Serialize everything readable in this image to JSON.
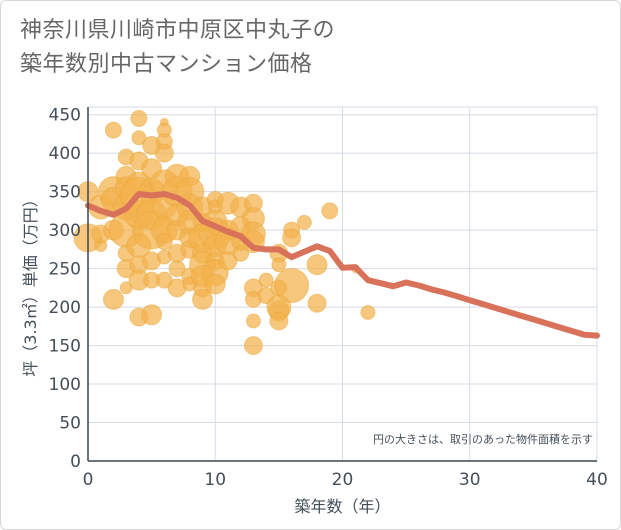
{
  "title": {
    "line1": "神奈川県川崎市中原区中丸子の",
    "line2": "築年数別中古マンション価格"
  },
  "chart_data": {
    "type": "scatter",
    "xlabel": "築年数（年）",
    "ylabel": "坪（3.3㎡）単価（万円）",
    "xlim": [
      0,
      40
    ],
    "ylim": [
      0,
      460
    ],
    "xticks": [
      0,
      10,
      20,
      30,
      40
    ],
    "yticks": [
      0,
      50,
      100,
      150,
      200,
      250,
      300,
      350,
      400,
      450
    ],
    "note": "円の大きさは、取引のあった物件面積を示す",
    "colors": {
      "bubble": "#f2b24b",
      "line": "#d9725a",
      "grid": "#d5dbe3"
    },
    "scatter_points": [
      {
        "x": 0,
        "y": 350,
        "s": 10
      },
      {
        "x": 0,
        "y": 290,
        "s": 14
      },
      {
        "x": 1,
        "y": 330,
        "s": 12
      },
      {
        "x": 1,
        "y": 280,
        "s": 6
      },
      {
        "x": 1,
        "y": 295,
        "s": 9
      },
      {
        "x": 2,
        "y": 430,
        "s": 8
      },
      {
        "x": 2,
        "y": 350,
        "s": 15
      },
      {
        "x": 2,
        "y": 340,
        "s": 12
      },
      {
        "x": 2,
        "y": 300,
        "s": 10
      },
      {
        "x": 2,
        "y": 210,
        "s": 10
      },
      {
        "x": 3,
        "y": 395,
        "s": 8
      },
      {
        "x": 3,
        "y": 370,
        "s": 10
      },
      {
        "x": 3,
        "y": 355,
        "s": 11
      },
      {
        "x": 3,
        "y": 330,
        "s": 13
      },
      {
        "x": 3,
        "y": 300,
        "s": 17
      },
      {
        "x": 3,
        "y": 270,
        "s": 8
      },
      {
        "x": 3,
        "y": 250,
        "s": 9
      },
      {
        "x": 3,
        "y": 225,
        "s": 6
      },
      {
        "x": 4,
        "y": 445,
        "s": 8
      },
      {
        "x": 4,
        "y": 420,
        "s": 7
      },
      {
        "x": 4,
        "y": 390,
        "s": 9
      },
      {
        "x": 4,
        "y": 360,
        "s": 12
      },
      {
        "x": 4,
        "y": 345,
        "s": 18
      },
      {
        "x": 4,
        "y": 320,
        "s": 14
      },
      {
        "x": 4,
        "y": 280,
        "s": 12
      },
      {
        "x": 4,
        "y": 255,
        "s": 9
      },
      {
        "x": 4,
        "y": 235,
        "s": 10
      },
      {
        "x": 4,
        "y": 187,
        "s": 9
      },
      {
        "x": 5,
        "y": 410,
        "s": 9
      },
      {
        "x": 5,
        "y": 380,
        "s": 10
      },
      {
        "x": 5,
        "y": 350,
        "s": 13
      },
      {
        "x": 5,
        "y": 320,
        "s": 15
      },
      {
        "x": 5,
        "y": 300,
        "s": 19
      },
      {
        "x": 5,
        "y": 260,
        "s": 9
      },
      {
        "x": 5,
        "y": 235,
        "s": 8
      },
      {
        "x": 5,
        "y": 190,
        "s": 10
      },
      {
        "x": 6,
        "y": 440,
        "s": 4
      },
      {
        "x": 6,
        "y": 430,
        "s": 7
      },
      {
        "x": 6,
        "y": 415,
        "s": 8
      },
      {
        "x": 6,
        "y": 400,
        "s": 9
      },
      {
        "x": 6,
        "y": 360,
        "s": 14
      },
      {
        "x": 6,
        "y": 330,
        "s": 12
      },
      {
        "x": 6,
        "y": 300,
        "s": 13
      },
      {
        "x": 6,
        "y": 285,
        "s": 8
      },
      {
        "x": 6,
        "y": 265,
        "s": 7
      },
      {
        "x": 6,
        "y": 235,
        "s": 8
      },
      {
        "x": 7,
        "y": 370,
        "s": 12
      },
      {
        "x": 7,
        "y": 350,
        "s": 15
      },
      {
        "x": 7,
        "y": 320,
        "s": 11
      },
      {
        "x": 7,
        "y": 300,
        "s": 10
      },
      {
        "x": 7,
        "y": 270,
        "s": 9
      },
      {
        "x": 7,
        "y": 250,
        "s": 8
      },
      {
        "x": 7,
        "y": 225,
        "s": 9
      },
      {
        "x": 8,
        "y": 370,
        "s": 10
      },
      {
        "x": 8,
        "y": 350,
        "s": 14
      },
      {
        "x": 8,
        "y": 330,
        "s": 13
      },
      {
        "x": 8,
        "y": 310,
        "s": 12
      },
      {
        "x": 8,
        "y": 290,
        "s": 10
      },
      {
        "x": 8,
        "y": 275,
        "s": 9
      },
      {
        "x": 8,
        "y": 240,
        "s": 8
      },
      {
        "x": 8,
        "y": 230,
        "s": 7
      },
      {
        "x": 9,
        "y": 330,
        "s": 10
      },
      {
        "x": 9,
        "y": 310,
        "s": 9
      },
      {
        "x": 9,
        "y": 290,
        "s": 14
      },
      {
        "x": 9,
        "y": 270,
        "s": 10
      },
      {
        "x": 9,
        "y": 255,
        "s": 13
      },
      {
        "x": 9,
        "y": 240,
        "s": 11
      },
      {
        "x": 9,
        "y": 225,
        "s": 9
      },
      {
        "x": 9,
        "y": 210,
        "s": 10
      },
      {
        "x": 10,
        "y": 340,
        "s": 8
      },
      {
        "x": 10,
        "y": 330,
        "s": 7
      },
      {
        "x": 10,
        "y": 310,
        "s": 12
      },
      {
        "x": 10,
        "y": 295,
        "s": 16
      },
      {
        "x": 10,
        "y": 280,
        "s": 11
      },
      {
        "x": 10,
        "y": 260,
        "s": 9
      },
      {
        "x": 10,
        "y": 245,
        "s": 13
      },
      {
        "x": 10,
        "y": 230,
        "s": 10
      },
      {
        "x": 11,
        "y": 335,
        "s": 11
      },
      {
        "x": 11,
        "y": 300,
        "s": 10
      },
      {
        "x": 11,
        "y": 285,
        "s": 13
      },
      {
        "x": 11,
        "y": 260,
        "s": 9
      },
      {
        "x": 12,
        "y": 330,
        "s": 10
      },
      {
        "x": 12,
        "y": 305,
        "s": 10
      },
      {
        "x": 12,
        "y": 285,
        "s": 9
      },
      {
        "x": 12,
        "y": 270,
        "s": 8
      },
      {
        "x": 13,
        "y": 335,
        "s": 9
      },
      {
        "x": 13,
        "y": 315,
        "s": 11
      },
      {
        "x": 13,
        "y": 295,
        "s": 12
      },
      {
        "x": 13,
        "y": 285,
        "s": 11
      },
      {
        "x": 13,
        "y": 225,
        "s": 9
      },
      {
        "x": 13,
        "y": 210,
        "s": 8
      },
      {
        "x": 13,
        "y": 182,
        "s": 7
      },
      {
        "x": 13,
        "y": 150,
        "s": 9
      },
      {
        "x": 14,
        "y": 235,
        "s": 7
      },
      {
        "x": 14,
        "y": 215,
        "s": 8
      },
      {
        "x": 15,
        "y": 270,
        "s": 9
      },
      {
        "x": 15,
        "y": 255,
        "s": 7
      },
      {
        "x": 15,
        "y": 225,
        "s": 8
      },
      {
        "x": 15,
        "y": 200,
        "s": 12
      },
      {
        "x": 15,
        "y": 195,
        "s": 10
      },
      {
        "x": 15,
        "y": 182,
        "s": 9
      },
      {
        "x": 16,
        "y": 300,
        "s": 8
      },
      {
        "x": 16,
        "y": 290,
        "s": 9
      },
      {
        "x": 16,
        "y": 228,
        "s": 17
      },
      {
        "x": 17,
        "y": 310,
        "s": 7
      },
      {
        "x": 18,
        "y": 255,
        "s": 10
      },
      {
        "x": 18,
        "y": 205,
        "s": 9
      },
      {
        "x": 19,
        "y": 325,
        "s": 8
      },
      {
        "x": 21,
        "y": 250,
        "s": 4
      },
      {
        "x": 22,
        "y": 193,
        "s": 7
      }
    ],
    "trend_line": {
      "x": [
        0,
        1,
        2,
        3,
        4,
        5,
        6,
        7,
        8,
        9,
        10,
        11,
        12,
        13,
        14,
        15,
        16,
        17,
        18,
        19,
        20,
        21,
        22,
        23,
        24,
        25,
        26,
        27,
        28,
        29,
        30,
        31,
        32,
        33,
        34,
        35,
        36,
        37,
        38,
        39,
        40
      ],
      "y": [
        332,
        325,
        320,
        328,
        347,
        345,
        347,
        342,
        332,
        312,
        305,
        298,
        292,
        277,
        275,
        275,
        265,
        272,
        279,
        273,
        251,
        252,
        235,
        231,
        227,
        232,
        228,
        223,
        219,
        214,
        209,
        204,
        199,
        194,
        189,
        184,
        179,
        174,
        169,
        164,
        163
      ]
    }
  }
}
